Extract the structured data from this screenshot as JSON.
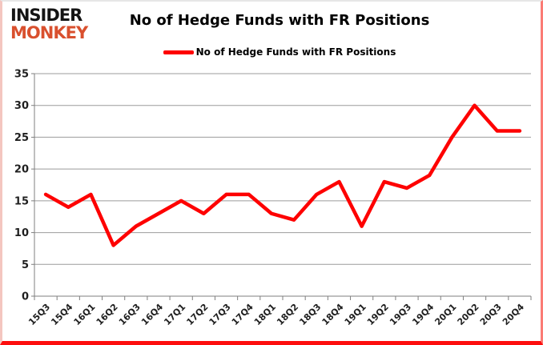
{
  "logo": {
    "line1": "INSIDER",
    "line2": "MONKEY"
  },
  "header": {
    "title": "No of Hedge Funds with FR Positions"
  },
  "legend": {
    "label": "No of Hedge Funds with FR Positions"
  },
  "colors": {
    "line": "#fe0000",
    "gridline": "#9b9b9b",
    "axis": "#7f7f7f",
    "tick": "#7f7f7f",
    "label": "#1f1f1f",
    "logo_insider": "#141414",
    "logo_monkey": "#d9502e"
  },
  "chart_data": {
    "type": "line",
    "title": "No of Hedge Funds with FR Positions",
    "categories": [
      "15Q3",
      "15Q4",
      "16Q1",
      "16Q2",
      "16Q3",
      "16Q4",
      "17Q1",
      "17Q2",
      "17Q3",
      "17Q4",
      "18Q1",
      "18Q2",
      "18Q3",
      "18Q4",
      "19Q1",
      "19Q2",
      "19Q3",
      "19Q4",
      "20Q1",
      "20Q2",
      "20Q3",
      "20Q4"
    ],
    "series": [
      {
        "name": "No of Hedge Funds with FR Positions",
        "color": "#fe0000",
        "values": [
          16,
          14,
          16,
          8,
          11,
          13,
          15,
          13,
          16,
          16,
          13,
          12,
          16,
          18,
          11,
          18,
          17,
          19,
          25,
          30,
          26,
          26
        ]
      }
    ],
    "xlabel": "",
    "ylabel": "",
    "ylim": [
      0,
      35
    ],
    "yticks": [
      0,
      5,
      10,
      15,
      20,
      25,
      30,
      35
    ],
    "grid": "horizontal",
    "legend_position": "top-center"
  }
}
